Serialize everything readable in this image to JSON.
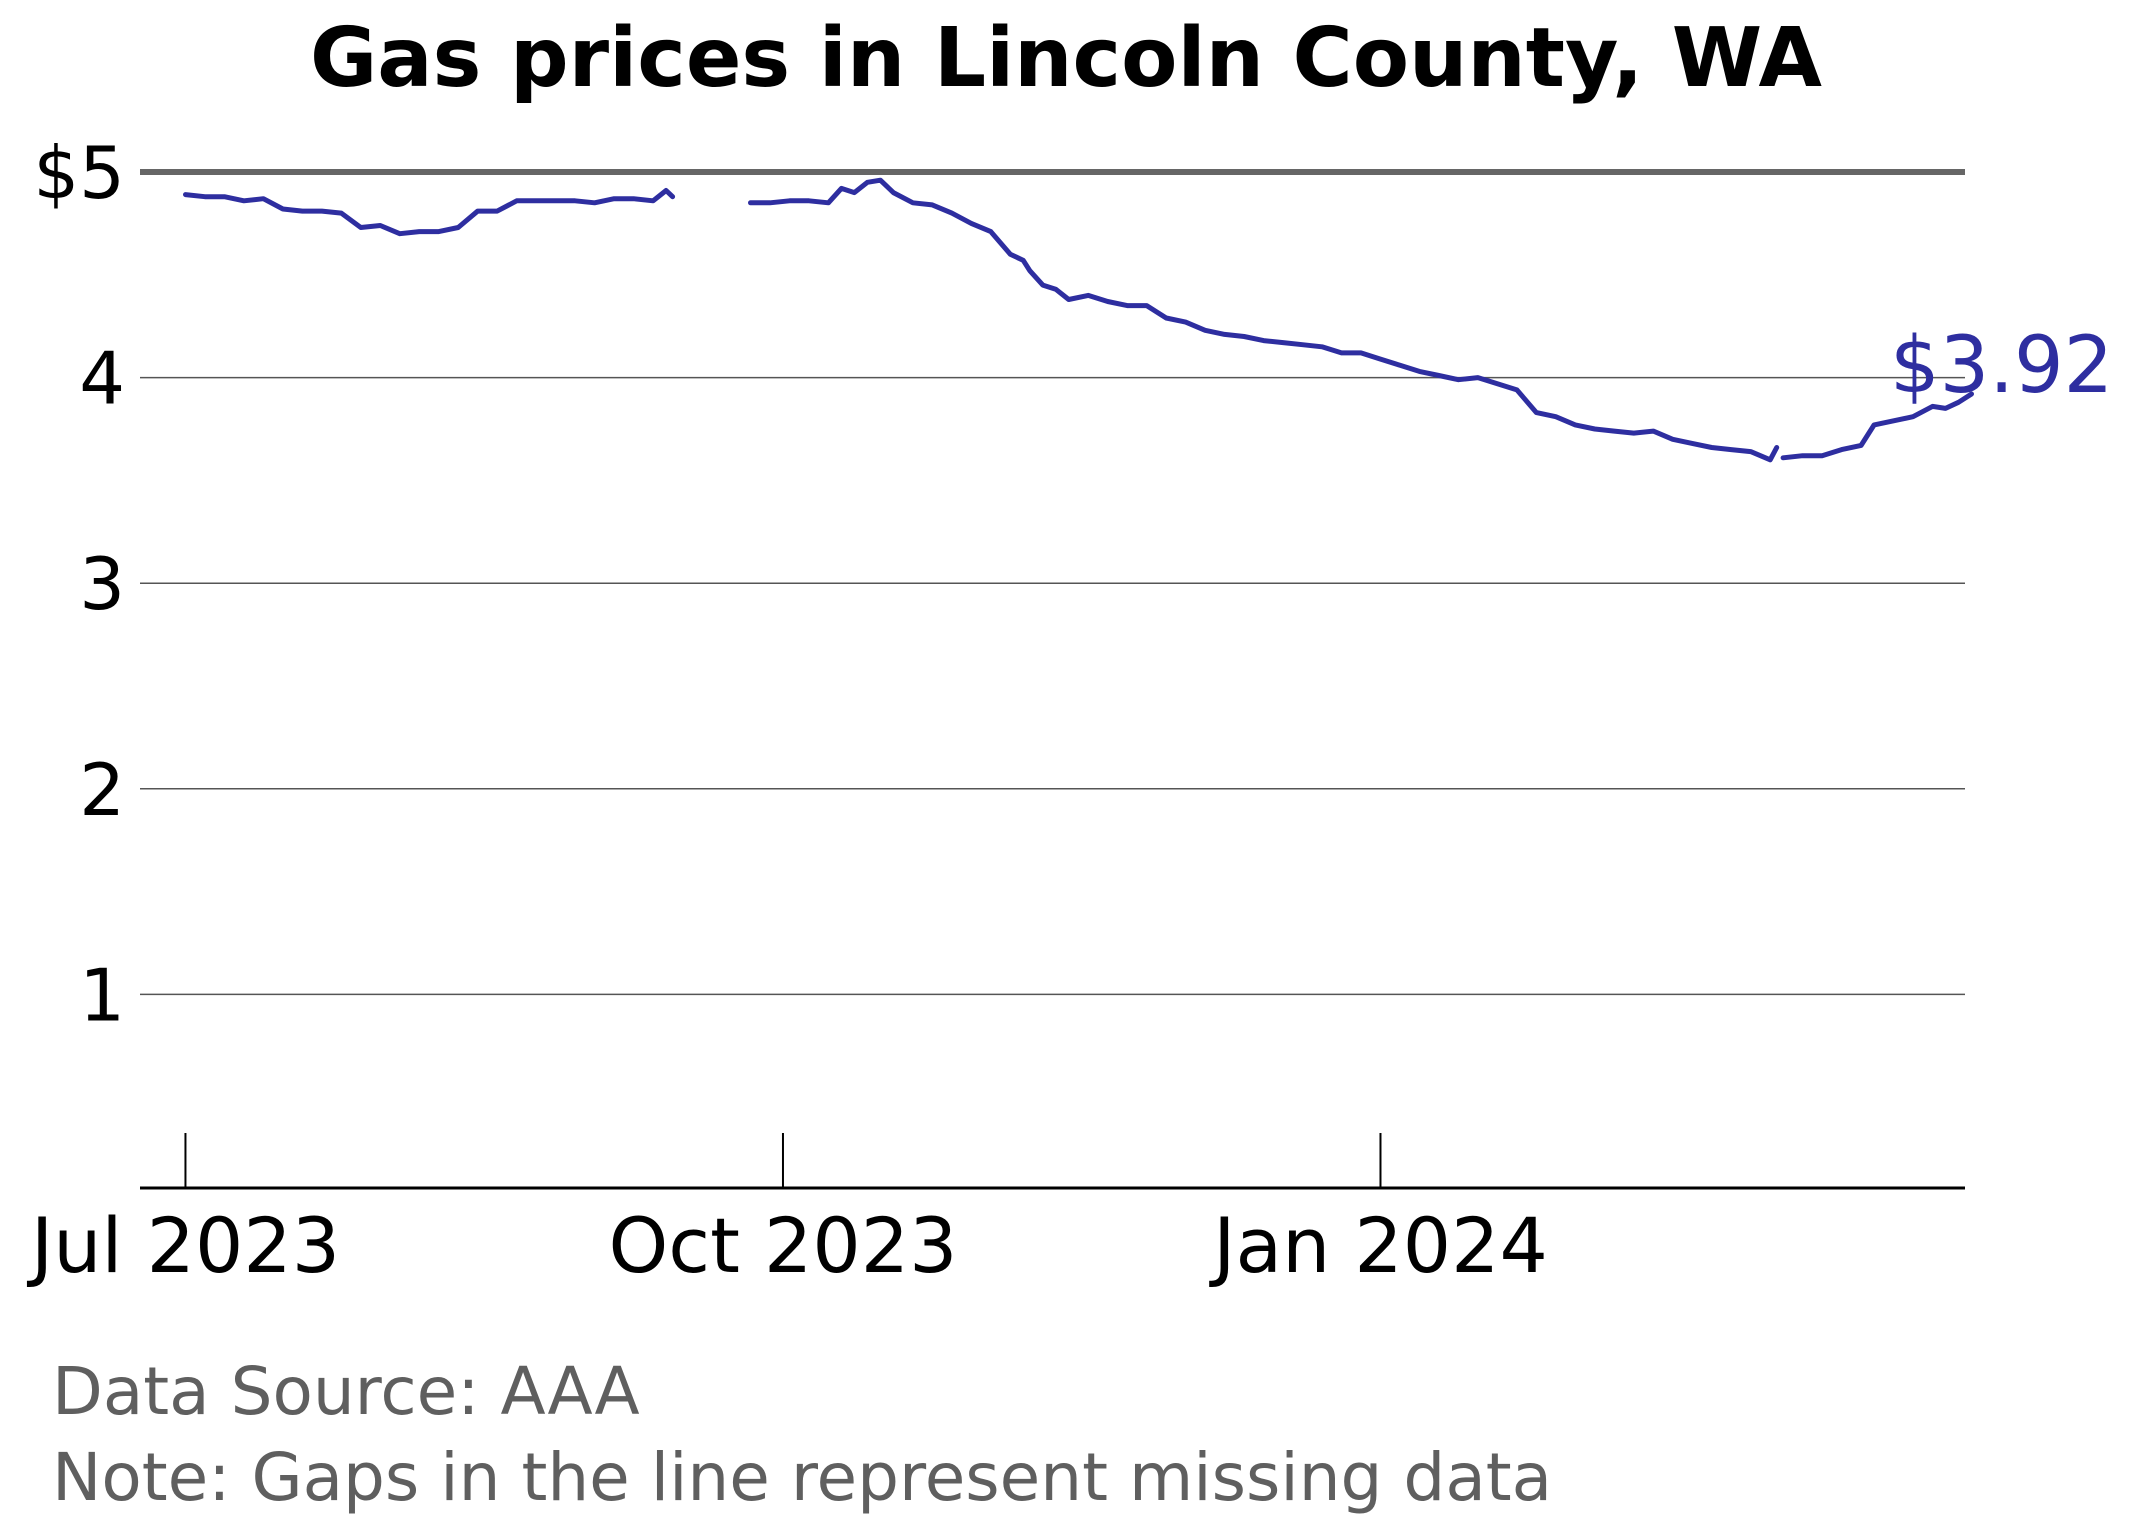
{
  "chart_data": {
    "type": "line",
    "title": "Gas prices in Lincoln County, WA",
    "xlabel": "",
    "ylabel": "",
    "x_range": [
      "2023-06-24",
      "2024-03-31"
    ],
    "ylim": [
      0,
      5
    ],
    "y_ticks": [
      {
        "value": 5,
        "label": "$5"
      },
      {
        "value": 4,
        "label": "4"
      },
      {
        "value": 3,
        "label": "3"
      },
      {
        "value": 2,
        "label": "2"
      },
      {
        "value": 1,
        "label": "1"
      }
    ],
    "x_ticks": [
      {
        "date": "2023-07-01",
        "label": "Jul 2023"
      },
      {
        "date": "2023-10-01",
        "label": "Oct 2023"
      },
      {
        "date": "2024-01-01",
        "label": "Jan 2024"
      }
    ],
    "reference_line": {
      "value": 5,
      "color": "#666666"
    },
    "grid": "horizontal",
    "legend": "none",
    "line_color": "#2e2ea0",
    "end_label": "$3.92",
    "series": [
      {
        "segments": [
          [
            [
              "2023-07-01",
              4.89
            ],
            [
              "2023-07-04",
              4.88
            ],
            [
              "2023-07-07",
              4.88
            ],
            [
              "2023-07-10",
              4.86
            ],
            [
              "2023-07-13",
              4.87
            ],
            [
              "2023-07-16",
              4.82
            ],
            [
              "2023-07-19",
              4.81
            ],
            [
              "2023-07-22",
              4.81
            ],
            [
              "2023-07-25",
              4.8
            ],
            [
              "2023-07-28",
              4.73
            ],
            [
              "2023-07-31",
              4.74
            ],
            [
              "2023-08-03",
              4.7
            ],
            [
              "2023-08-06",
              4.71
            ],
            [
              "2023-08-09",
              4.71
            ],
            [
              "2023-08-12",
              4.73
            ],
            [
              "2023-08-15",
              4.81
            ],
            [
              "2023-08-18",
              4.81
            ],
            [
              "2023-08-21",
              4.86
            ],
            [
              "2023-08-24",
              4.86
            ],
            [
              "2023-08-27",
              4.86
            ],
            [
              "2023-08-30",
              4.86
            ],
            [
              "2023-09-02",
              4.85
            ],
            [
              "2023-09-05",
              4.87
            ],
            [
              "2023-09-08",
              4.87
            ],
            [
              "2023-09-11",
              4.86
            ],
            [
              "2023-09-13",
              4.91
            ],
            [
              "2023-09-14",
              4.88
            ]
          ],
          [
            [
              "2023-09-26",
              4.85
            ],
            [
              "2023-09-29",
              4.85
            ],
            [
              "2023-10-02",
              4.86
            ],
            [
              "2023-10-05",
              4.86
            ],
            [
              "2023-10-08",
              4.85
            ],
            [
              "2023-10-10",
              4.92
            ],
            [
              "2023-10-12",
              4.9
            ],
            [
              "2023-10-14",
              4.95
            ],
            [
              "2023-10-16",
              4.96
            ],
            [
              "2023-10-18",
              4.9
            ],
            [
              "2023-10-21",
              4.85
            ],
            [
              "2023-10-24",
              4.84
            ],
            [
              "2023-10-27",
              4.8
            ],
            [
              "2023-10-30",
              4.75
            ],
            [
              "2023-11-02",
              4.71
            ],
            [
              "2023-11-05",
              4.6
            ],
            [
              "2023-11-07",
              4.57
            ],
            [
              "2023-11-08",
              4.52
            ],
            [
              "2023-11-10",
              4.45
            ],
            [
              "2023-11-12",
              4.43
            ],
            [
              "2023-11-14",
              4.38
            ],
            [
              "2023-11-17",
              4.4
            ],
            [
              "2023-11-20",
              4.37
            ],
            [
              "2023-11-23",
              4.35
            ],
            [
              "2023-11-26",
              4.35
            ],
            [
              "2023-11-29",
              4.29
            ],
            [
              "2023-12-02",
              4.27
            ],
            [
              "2023-12-05",
              4.23
            ],
            [
              "2023-12-08",
              4.21
            ],
            [
              "2023-12-11",
              4.2
            ],
            [
              "2023-12-14",
              4.18
            ],
            [
              "2023-12-17",
              4.17
            ],
            [
              "2023-12-20",
              4.16
            ],
            [
              "2023-12-23",
              4.15
            ],
            [
              "2023-12-26",
              4.12
            ],
            [
              "2023-12-29",
              4.12
            ],
            [
              "2024-01-01",
              4.09
            ],
            [
              "2024-01-04",
              4.06
            ],
            [
              "2024-01-07",
              4.03
            ],
            [
              "2024-01-10",
              4.01
            ],
            [
              "2024-01-13",
              3.99
            ],
            [
              "2024-01-16",
              4.0
            ],
            [
              "2024-01-19",
              3.97
            ],
            [
              "2024-01-22",
              3.94
            ],
            [
              "2024-01-25",
              3.83
            ],
            [
              "2024-01-28",
              3.81
            ],
            [
              "2024-01-31",
              3.77
            ],
            [
              "2024-02-03",
              3.75
            ],
            [
              "2024-02-06",
              3.74
            ],
            [
              "2024-02-09",
              3.73
            ],
            [
              "2024-02-12",
              3.74
            ],
            [
              "2024-02-15",
              3.7
            ],
            [
              "2024-02-18",
              3.68
            ],
            [
              "2024-02-21",
              3.66
            ],
            [
              "2024-02-24",
              3.65
            ],
            [
              "2024-02-27",
              3.64
            ],
            [
              "2024-03-01",
              3.6
            ],
            [
              "2024-03-02",
              3.66
            ]
          ],
          [
            [
              "2024-03-03",
              3.61
            ],
            [
              "2024-03-06",
              3.62
            ],
            [
              "2024-03-09",
              3.62
            ],
            [
              "2024-03-12",
              3.65
            ],
            [
              "2024-03-15",
              3.67
            ],
            [
              "2024-03-17",
              3.77
            ],
            [
              "2024-03-20",
              3.79
            ],
            [
              "2024-03-23",
              3.81
            ],
            [
              "2024-03-26",
              3.86
            ],
            [
              "2024-03-28",
              3.85
            ],
            [
              "2024-03-30",
              3.88
            ],
            [
              "2024-04-01",
              3.92
            ]
          ]
        ]
      }
    ]
  },
  "footer": {
    "source": "Data Source: AAA",
    "note": "Note: Gaps in the line represent missing data"
  }
}
